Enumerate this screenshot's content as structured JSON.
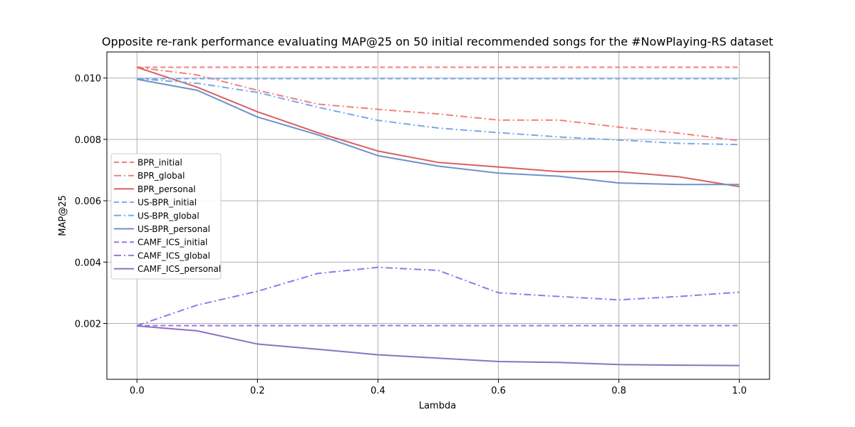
{
  "chart_data": {
    "type": "line",
    "title": "Opposite re-rank performance evaluating MAP@25 on 50 initial recommended songs for the #NowPlaying-RS dataset",
    "xlabel": "Lambda",
    "ylabel": "MAP@25",
    "xlim": [
      -0.05,
      1.05
    ],
    "ylim": [
      0.00018,
      0.01085
    ],
    "x": [
      0.0,
      0.1,
      0.2,
      0.3,
      0.4,
      0.5,
      0.6,
      0.7,
      0.8,
      0.9,
      1.0
    ],
    "xticks": [
      "0.0",
      "0.2",
      "0.4",
      "0.6",
      "0.8",
      "1.0"
    ],
    "yticks": [
      "0.002",
      "0.004",
      "0.006",
      "0.008",
      "0.010"
    ],
    "grid": true,
    "legend_position": "center-left",
    "series": [
      {
        "name": "BPR_initial",
        "color": "#f07f7f",
        "dash": "dashed",
        "values": [
          0.01035,
          0.01035,
          0.01035,
          0.01035,
          0.01035,
          0.01035,
          0.01035,
          0.01035,
          0.01035,
          0.01035,
          0.01035
        ]
      },
      {
        "name": "BPR_global",
        "color": "#f07f7f",
        "dash": "dashdot",
        "values": [
          0.01035,
          0.0101,
          0.0096,
          0.00915,
          0.00898,
          0.00883,
          0.00863,
          0.00863,
          0.0084,
          0.0082,
          0.00796
        ]
      },
      {
        "name": "BPR_personal",
        "color": "#d9605f",
        "dash": "solid",
        "values": [
          0.01035,
          0.0097,
          0.0089,
          0.00822,
          0.00762,
          0.00725,
          0.0071,
          0.00695,
          0.00695,
          0.00678,
          0.00646
        ]
      },
      {
        "name": "US-BPR_initial",
        "color": "#79a9ea",
        "dash": "dashed",
        "values": [
          0.00998,
          0.00998,
          0.00998,
          0.00998,
          0.00998,
          0.00998,
          0.00998,
          0.00998,
          0.00998,
          0.00998,
          0.00998
        ]
      },
      {
        "name": "US-BPR_global",
        "color": "#79a9ea",
        "dash": "dashdot",
        "values": [
          0.00998,
          0.00983,
          0.00953,
          0.00905,
          0.00862,
          0.00837,
          0.00822,
          0.00808,
          0.00798,
          0.00787,
          0.00783
        ]
      },
      {
        "name": "US-BPR_personal",
        "color": "#6f91c9",
        "dash": "solid",
        "values": [
          0.00996,
          0.0096,
          0.00873,
          0.00815,
          0.00747,
          0.00713,
          0.0069,
          0.0068,
          0.00658,
          0.00653,
          0.00653
        ]
      },
      {
        "name": "CAMF_ICS_initial",
        "color": "#9a75e6",
        "dash": "dashed",
        "values": [
          0.00193,
          0.00193,
          0.00193,
          0.00193,
          0.00193,
          0.00193,
          0.00193,
          0.00193,
          0.00193,
          0.00193,
          0.00193
        ]
      },
      {
        "name": "CAMF_ICS_global",
        "color": "#9a75e6",
        "dash": "dashdot",
        "values": [
          0.00193,
          0.0026,
          0.00305,
          0.00363,
          0.00383,
          0.00373,
          0.003,
          0.00288,
          0.00277,
          0.00288,
          0.00302
        ]
      },
      {
        "name": "CAMF_ICS_personal",
        "color": "#8b72c2",
        "dash": "solid",
        "values": [
          0.00192,
          0.00176,
          0.00133,
          0.00116,
          0.00098,
          0.00087,
          0.00076,
          0.00073,
          0.00066,
          0.00064,
          0.00063
        ]
      }
    ]
  }
}
